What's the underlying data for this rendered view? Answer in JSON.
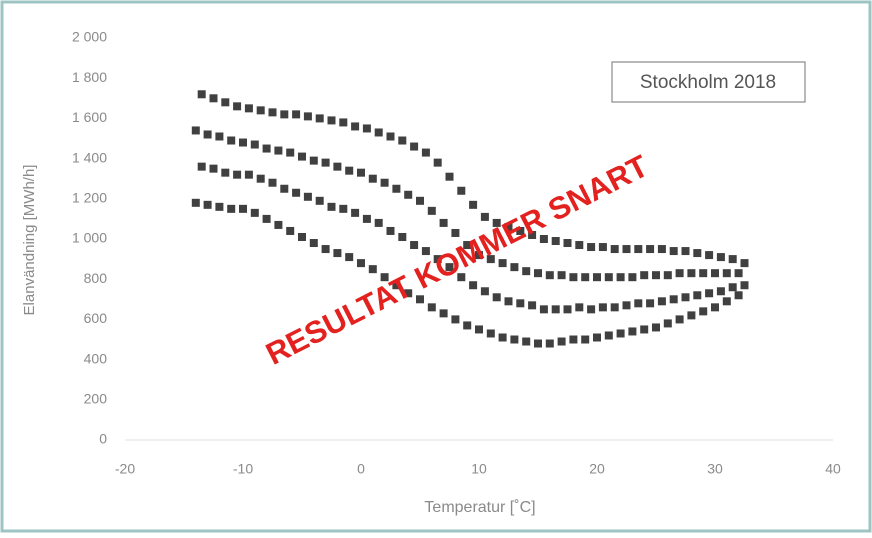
{
  "chart_data": {
    "type": "scatter",
    "x_label": "Temperatur [˚C]",
    "y_label": "Elanvändning [MWh/h]",
    "annotations": [
      "Stockholm 2018",
      "RESULTAT KOMMER SNART"
    ],
    "color": "#404040",
    "grid": false,
    "xlim": [
      -20,
      40
    ],
    "xticks": [
      -20,
      -10,
      0,
      10,
      20,
      30,
      40
    ],
    "ylim": [
      0,
      2000
    ],
    "yticks": [
      0,
      200,
      400,
      600,
      800,
      {
        "value": 1000,
        "label": "1 000"
      },
      {
        "value": 1200,
        "label": "1 200"
      },
      {
        "value": 1400,
        "label": "1 400"
      },
      {
        "value": 1600,
        "label": "1 600"
      },
      {
        "value": 1800,
        "label": "1 800"
      },
      {
        "value": 2000,
        "label": "2 000"
      }
    ],
    "x": [
      -14,
      -13.5,
      -14,
      -13.5,
      -13,
      -12.5,
      -13,
      -12.5,
      -12,
      -11.5,
      -12,
      -11.5,
      -11,
      -10.5,
      -11,
      -10.5,
      -10,
      -9.5,
      -10,
      -9.5,
      -9,
      -8.5,
      -9,
      -8.5,
      -8,
      -7.5,
      -8,
      -7.5,
      -7,
      -6.5,
      -7,
      -6.5,
      -6,
      -5.5,
      -6,
      -5.5,
      -5,
      -4.5,
      -5,
      -4.5,
      -4,
      -3.5,
      -4,
      -3.5,
      -3,
      -2.5,
      -3,
      -2.5,
      -2,
      -1.5,
      -2,
      -1.5,
      -1,
      -0.5,
      -1,
      -0.5,
      0,
      0.5,
      0,
      0.5,
      1,
      1.5,
      1,
      1.5,
      2,
      2.5,
      2,
      2.5,
      3,
      3.5,
      3,
      3.5,
      4,
      4.5,
      4,
      4.5,
      5,
      5.5,
      5,
      5.5,
      6,
      6.5,
      6,
      6.5,
      7,
      7.5,
      7,
      7.5,
      8,
      8.5,
      8,
      8.5,
      9,
      9.5,
      9,
      9.5,
      10,
      10.5,
      10,
      10.5,
      11,
      11.5,
      11,
      11.5,
      12,
      12.5,
      12,
      12.5,
      13,
      13.5,
      13,
      13.5,
      14,
      14.5,
      14,
      14.5,
      15,
      15.5,
      15,
      15.5,
      16,
      16.5,
      16,
      16.5,
      17,
      17.5,
      17,
      17.5,
      18,
      18.5,
      18,
      18.5,
      19,
      19.5,
      19,
      19.5,
      20,
      20.5,
      20,
      20.5,
      21,
      21.5,
      21,
      21.5,
      22,
      22.5,
      22,
      22.5,
      23,
      23.5,
      23,
      23.5,
      24,
      24.5,
      24,
      24.5,
      25,
      25.5,
      25,
      25.5,
      26,
      26.5,
      26,
      26.5,
      27,
      27.5,
      27,
      27.5,
      28,
      28.5,
      28,
      28.5,
      29,
      29.5,
      29,
      29.5,
      30,
      30.5,
      30,
      30.5,
      31,
      31.5,
      31,
      31.5,
      32,
      32.5,
      32,
      32.5
    ],
    "y": [
      1180,
      1360,
      1540,
      1720,
      1170,
      1350,
      1520,
      1700,
      1160,
      1330,
      1510,
      1680,
      1150,
      1320,
      1490,
      1660,
      1150,
      1320,
      1480,
      1650,
      1130,
      1300,
      1470,
      1640,
      1100,
      1280,
      1450,
      1630,
      1070,
      1250,
      1440,
      1620,
      1040,
      1230,
      1430,
      1620,
      1010,
      1210,
      1410,
      1610,
      980,
      1190,
      1390,
      1600,
      950,
      1160,
      1380,
      1590,
      930,
      1150,
      1360,
      1580,
      910,
      1130,
      1340,
      1560,
      880,
      1100,
      1330,
      1550,
      850,
      1080,
      1300,
      1530,
      810,
      1040,
      1280,
      1510,
      770,
      1010,
      1250,
      1490,
      730,
      970,
      1220,
      1460,
      700,
      940,
      1190,
      1430,
      660,
      900,
      1140,
      1380,
      630,
      860,
      1080,
      1310,
      600,
      810,
      1030,
      1240,
      570,
      770,
      970,
      1170,
      550,
      740,
      920,
      1110,
      530,
      710,
      900,
      1080,
      510,
      690,
      880,
      1060,
      500,
      680,
      860,
      1040,
      490,
      670,
      840,
      1020,
      480,
      650,
      830,
      1000,
      480,
      650,
      820,
      990,
      490,
      650,
      820,
      980,
      500,
      660,
      810,
      970,
      500,
      650,
      810,
      960,
      510,
      660,
      810,
      960,
      520,
      660,
      810,
      950,
      530,
      670,
      810,
      950,
      540,
      680,
      810,
      950,
      550,
      680,
      820,
      950,
      560,
      690,
      820,
      950,
      580,
      700,
      820,
      940,
      600,
      710,
      830,
      940,
      620,
      720,
      830,
      930,
      640,
      730,
      830,
      920,
      660,
      740,
      830,
      910,
      690,
      760,
      830,
      900,
      720,
      770,
      830,
      880
    ]
  }
}
